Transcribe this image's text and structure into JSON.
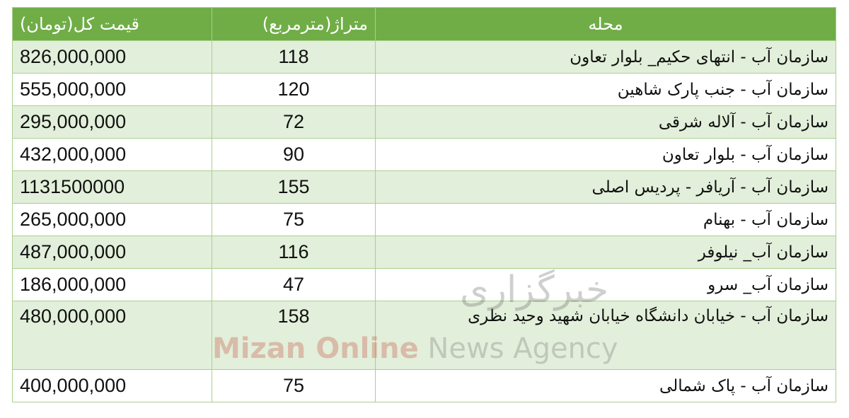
{
  "table": {
    "headers": {
      "price": "قیمت کل(تومان)",
      "area": "متراژ(مترمربع)",
      "location": "محله"
    },
    "rows": [
      {
        "location": "سازمان آب - انتهای حکیم_ بلوار تعاون",
        "area": "118",
        "price": "826,000,000"
      },
      {
        "location": "سازمان آب - جنب پارک شاهین",
        "area": "120",
        "price": "555,000,000"
      },
      {
        "location": "سازمان آب - آلاله شرقی",
        "area": "72",
        "price": "295,000,000"
      },
      {
        "location": "سازمان آب - بلوار تعاون",
        "area": "90",
        "price": "432,000,000"
      },
      {
        "location": "سازمان آب - آریافر - پردیس اصلی",
        "area": "155",
        "price": "1131500000"
      },
      {
        "location": "سازمان آب - بهنام",
        "area": "75",
        "price": "265,000,000"
      },
      {
        "location": "سازمان آب_ نیلوفر",
        "area": "116",
        "price": "487,000,000"
      },
      {
        "location": "سازمان آب_ سرو",
        "area": "47",
        "price": "186,000,000"
      },
      {
        "location": "سازمان آب - خیابان دانشگاه خیابان شهید وحید نظری",
        "area": "158",
        "price": "480,000,000"
      },
      {
        "location": "سازمان آب - پاک شمالی",
        "area": "75",
        "price": "400,000,000"
      }
    ]
  },
  "watermark": {
    "brand_red": "Mizan Online",
    "brand_gray": " News Agency",
    "persian": "خبرگزاری"
  },
  "colors": {
    "header_bg": "#70ad47",
    "row_alt_bg": "#e2efda",
    "border": "#a9d08e"
  }
}
